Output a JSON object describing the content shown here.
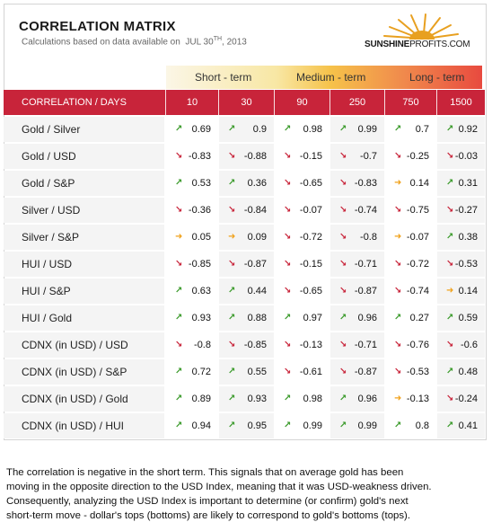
{
  "header": {
    "title": "CORRELATION MATRIX",
    "subtitle_prefix": "Calculations based on data available on",
    "date_month_day": "JUL 30",
    "date_suffix": "TH",
    "date_year": ", 2013",
    "logo_bold": "SUNSHINE",
    "logo_light": "PROFITS.COM"
  },
  "terms": {
    "short": "Short - term",
    "medium": "Medium - term",
    "long": "Long - term"
  },
  "columns": {
    "first": "CORRELATION / DAYS",
    "days": [
      "10",
      "30",
      "90",
      "250",
      "750",
      "1500"
    ]
  },
  "arrow_glyphs": {
    "up": "↗",
    "down": "↘",
    "side": "➜"
  },
  "colors": {
    "up": "#3a9a2a",
    "down": "#c8243a",
    "side": "#f0a21c",
    "header": "#c8243a"
  },
  "rows": [
    {
      "label": "Gold / Silver",
      "cells": [
        {
          "v": "0.69",
          "a": "up"
        },
        {
          "v": "0.9",
          "a": "up"
        },
        {
          "v": "0.98",
          "a": "up"
        },
        {
          "v": "0.99",
          "a": "up"
        },
        {
          "v": "0.7",
          "a": "up"
        },
        {
          "v": "0.92",
          "a": "up"
        }
      ]
    },
    {
      "label": "Gold / USD",
      "cells": [
        {
          "v": "-0.83",
          "a": "down"
        },
        {
          "v": "-0.88",
          "a": "down"
        },
        {
          "v": "-0.15",
          "a": "down"
        },
        {
          "v": "-0.7",
          "a": "down"
        },
        {
          "v": "-0.25",
          "a": "down"
        },
        {
          "v": "-0.03",
          "a": "down"
        }
      ]
    },
    {
      "label": "Gold / S&P",
      "cells": [
        {
          "v": "0.53",
          "a": "up"
        },
        {
          "v": "0.36",
          "a": "up"
        },
        {
          "v": "-0.65",
          "a": "down"
        },
        {
          "v": "-0.83",
          "a": "down"
        },
        {
          "v": "0.14",
          "a": "side"
        },
        {
          "v": "0.31",
          "a": "up"
        }
      ]
    },
    {
      "label": "Silver / USD",
      "cells": [
        {
          "v": "-0.36",
          "a": "down"
        },
        {
          "v": "-0.84",
          "a": "down"
        },
        {
          "v": "-0.07",
          "a": "down"
        },
        {
          "v": "-0.74",
          "a": "down"
        },
        {
          "v": "-0.75",
          "a": "down"
        },
        {
          "v": "-0.27",
          "a": "down"
        }
      ]
    },
    {
      "label": "Silver / S&P",
      "cells": [
        {
          "v": "0.05",
          "a": "side"
        },
        {
          "v": "0.09",
          "a": "side"
        },
        {
          "v": "-0.72",
          "a": "down"
        },
        {
          "v": "-0.8",
          "a": "down"
        },
        {
          "v": "-0.07",
          "a": "side"
        },
        {
          "v": "0.38",
          "a": "up"
        }
      ]
    },
    {
      "label": "HUI / USD",
      "cells": [
        {
          "v": "-0.85",
          "a": "down"
        },
        {
          "v": "-0.87",
          "a": "down"
        },
        {
          "v": "-0.15",
          "a": "down"
        },
        {
          "v": "-0.71",
          "a": "down"
        },
        {
          "v": "-0.72",
          "a": "down"
        },
        {
          "v": "-0.53",
          "a": "down"
        }
      ]
    },
    {
      "label": "HUI / S&P",
      "cells": [
        {
          "v": "0.63",
          "a": "up"
        },
        {
          "v": "0.44",
          "a": "up"
        },
        {
          "v": "-0.65",
          "a": "down"
        },
        {
          "v": "-0.87",
          "a": "down"
        },
        {
          "v": "-0.74",
          "a": "down"
        },
        {
          "v": "0.14",
          "a": "side"
        }
      ]
    },
    {
      "label": "HUI / Gold",
      "cells": [
        {
          "v": "0.93",
          "a": "up"
        },
        {
          "v": "0.88",
          "a": "up"
        },
        {
          "v": "0.97",
          "a": "up"
        },
        {
          "v": "0.96",
          "a": "up"
        },
        {
          "v": "0.27",
          "a": "up"
        },
        {
          "v": "0.59",
          "a": "up"
        }
      ]
    },
    {
      "label": "CDNX (in USD) / USD",
      "cells": [
        {
          "v": "-0.8",
          "a": "down"
        },
        {
          "v": "-0.85",
          "a": "down"
        },
        {
          "v": "-0.13",
          "a": "down"
        },
        {
          "v": "-0.71",
          "a": "down"
        },
        {
          "v": "-0.76",
          "a": "down"
        },
        {
          "v": "-0.6",
          "a": "down"
        }
      ]
    },
    {
      "label": "CDNX (in USD) / S&P",
      "cells": [
        {
          "v": "0.72",
          "a": "up"
        },
        {
          "v": "0.55",
          "a": "up"
        },
        {
          "v": "-0.61",
          "a": "down"
        },
        {
          "v": "-0.87",
          "a": "down"
        },
        {
          "v": "-0.53",
          "a": "down"
        },
        {
          "v": "0.48",
          "a": "up"
        }
      ]
    },
    {
      "label": "CDNX (in USD) / Gold",
      "cells": [
        {
          "v": "0.89",
          "a": "up"
        },
        {
          "v": "0.93",
          "a": "up"
        },
        {
          "v": "0.98",
          "a": "up"
        },
        {
          "v": "0.96",
          "a": "up"
        },
        {
          "v": "-0.13",
          "a": "side"
        },
        {
          "v": "-0.24",
          "a": "down"
        }
      ]
    },
    {
      "label": "CDNX (in USD) / HUI",
      "cells": [
        {
          "v": "0.94",
          "a": "up"
        },
        {
          "v": "0.95",
          "a": "up"
        },
        {
          "v": "0.99",
          "a": "up"
        },
        {
          "v": "0.99",
          "a": "up"
        },
        {
          "v": "0.8",
          "a": "up"
        },
        {
          "v": "0.41",
          "a": "up"
        }
      ]
    }
  ],
  "note": {
    "line1": "The correlation is negative in the short term. This signals that on average gold has been",
    "line2": "moving in the opposite direction to the USD Index, meaning that it was USD-weakness driven.",
    "line3": "Consequently, analyzing the USD Index is important to determine (or confirm) gold's next",
    "line4": "short-term move - dollar's tops (bottoms) are likely to correspond to gold's bottoms (tops)."
  }
}
